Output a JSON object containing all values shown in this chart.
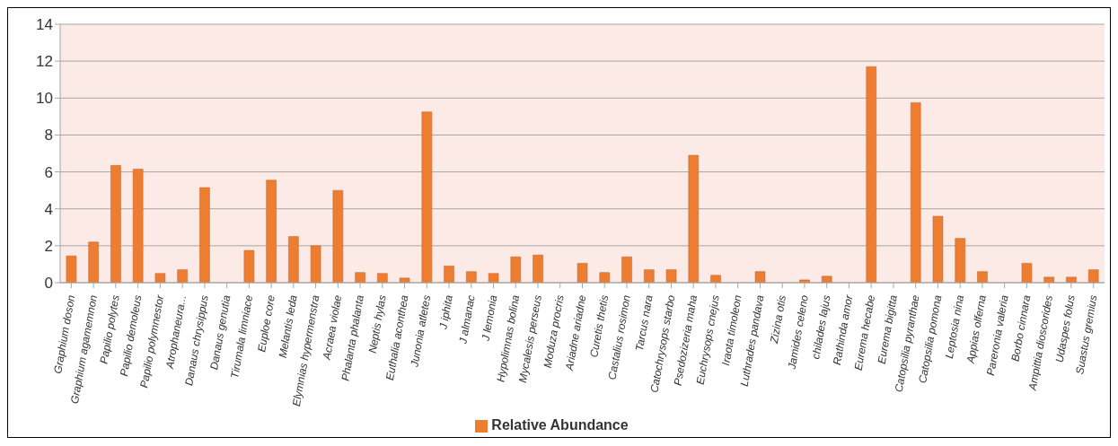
{
  "chart_data": {
    "type": "bar",
    "categories": [
      "Graphium doson",
      "Graphium agamemnon",
      "Papilio polytes",
      "Papilio demoleus",
      "Papilio polymnestor",
      "Atrophaneura...",
      "Danaus chrysippus",
      "Danaus genutia",
      "Tirumala limniace",
      "Euploe core",
      "Melantis leda",
      "Elymnias hypermenstra",
      "Acraea violae",
      "Phalanta phalanta",
      "Neptis hylas",
      "Euthalia aconthea",
      "Junonia atletes",
      "J iphita",
      "J almanac",
      "J lemonia",
      "Hypolimnas bolina",
      "Mycalesis perseus",
      "Moduza procris",
      "Ariadne ariadne",
      "Curetis thetis",
      "Castalius rosimon",
      "Tarcus nara",
      "Catochrysops starbo",
      "Psedozizeria maha",
      "Euchrysops cnejus",
      "Iraota timoleon",
      "Luthrades pandava",
      "Zizina otis",
      "Jamides celeno",
      "chilades lajus",
      "Rathinda amor",
      "Eurema hecabe",
      "Eurema bigitta",
      "Catopsilia pyranthae",
      "Catopsilia pomona",
      "Leptosia nina",
      "Appias olferna",
      "Pareronia valeria",
      "Borbo cinnara",
      "Ampittia dioscorides",
      "Udaspes folus",
      "Suastus gremius"
    ],
    "series": [
      {
        "name": "Relative Abundance",
        "color": "#ed7d31",
        "values": [
          1.45,
          2.2,
          6.35,
          6.15,
          0.5,
          0.7,
          5.15,
          0,
          1.75,
          5.55,
          2.5,
          2.0,
          5.0,
          0.55,
          0.5,
          0.25,
          9.25,
          0.9,
          0.6,
          0.5,
          1.4,
          1.5,
          0,
          1.05,
          0.55,
          1.4,
          0.7,
          0.7,
          6.9,
          0.4,
          0,
          0.6,
          0,
          0.15,
          0.35,
          0,
          11.7,
          0,
          9.75,
          3.6,
          2.4,
          0.6,
          0,
          1.05,
          0.3,
          0.3,
          0.7
        ]
      }
    ],
    "ylim": [
      0,
      14
    ],
    "yticks": [
      0,
      2,
      4,
      6,
      8,
      10,
      12,
      14
    ],
    "grid": "y",
    "legend": "bottom"
  }
}
